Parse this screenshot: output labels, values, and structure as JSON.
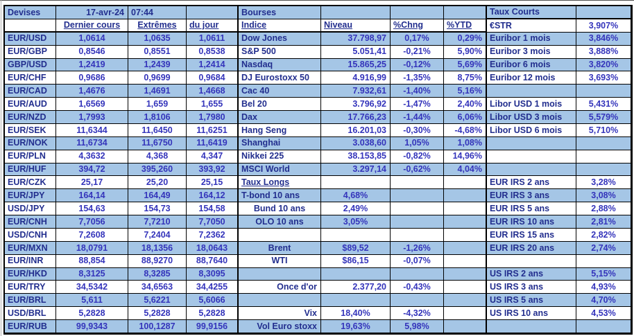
{
  "meta": {
    "date": "17-avr-24",
    "time": "07:44"
  },
  "colors": {
    "row_blue": "#a5c6e6",
    "row_white": "#ffffff",
    "label_text": "#222e8e",
    "value_text": "#3434bb",
    "border": "#000000"
  },
  "devises": {
    "title": "Devises",
    "headers": [
      "Dernier cours",
      "Extrêmes",
      "du jour"
    ],
    "rows": [
      {
        "pair": "EUR/USD",
        "dernier": "1,0614",
        "extremes": "1,0635",
        "du_jour": "1,0611"
      },
      {
        "pair": "EUR/GBP",
        "dernier": "0,8546",
        "extremes": "0,8551",
        "du_jour": "0,8538"
      },
      {
        "pair": "GBP/USD",
        "dernier": "1,2419",
        "extremes": "1,2439",
        "du_jour": "1,2414"
      },
      {
        "pair": "EUR/CHF",
        "dernier": "0,9686",
        "extremes": "0,9699",
        "du_jour": "0,9684"
      },
      {
        "pair": "EUR/CAD",
        "dernier": "1,4676",
        "extremes": "1,4691",
        "du_jour": "1,4668"
      },
      {
        "pair": "EUR/AUD",
        "dernier": "1,6569",
        "extremes": "1,659",
        "du_jour": "1,655"
      },
      {
        "pair": "EUR/NZD",
        "dernier": "1,7993",
        "extremes": "1,8106",
        "du_jour": "1,7980"
      },
      {
        "pair": "EUR/SEK",
        "dernier": "11,6344",
        "extremes": "11,6450",
        "du_jour": "11,6251"
      },
      {
        "pair": "EUR/NOK",
        "dernier": "11,6734",
        "extremes": "11,6750",
        "du_jour": "11,6419"
      },
      {
        "pair": "EUR/PLN",
        "dernier": "4,3632",
        "extremes": "4,368",
        "du_jour": "4,347"
      },
      {
        "pair": "EUR/HUF",
        "dernier": "394,72",
        "extremes": "395,260",
        "du_jour": "393,92"
      },
      {
        "pair": "EUR/CZK",
        "dernier": "25,17",
        "extremes": "25,20",
        "du_jour": "25,15"
      },
      {
        "pair": "EUR/JPY",
        "dernier": "164,14",
        "extremes": "164,49",
        "du_jour": "164,12"
      },
      {
        "pair": "USD/JPY",
        "dernier": "154,63",
        "extremes": "154,73",
        "du_jour": "154,58"
      },
      {
        "pair": "EUR/CNH",
        "dernier": "7,7056",
        "extremes": "7,7210",
        "du_jour": "7,7050"
      },
      {
        "pair": "USD/CNH",
        "dernier": "7,2608",
        "extremes": "7,2404",
        "du_jour": "7,2362"
      },
      {
        "pair": "EUR/MXN",
        "dernier": "18,0791",
        "extremes": "18,1356",
        "du_jour": "18,0643"
      },
      {
        "pair": "EUR/INR",
        "dernier": "88,854",
        "extremes": "88,9270",
        "du_jour": "88,7640"
      },
      {
        "pair": "EUR/HKD",
        "dernier": "8,3125",
        "extremes": "8,3285",
        "du_jour": "8,3095"
      },
      {
        "pair": "EUR/TRY",
        "dernier": "34,5342",
        "extremes": "34,6563",
        "du_jour": "34,4255"
      },
      {
        "pair": "EUR/BRL",
        "dernier": "5,611",
        "extremes": "5,6221",
        "du_jour": "5,6066"
      },
      {
        "pair": "USD/BRL",
        "dernier": "5,2828",
        "extremes": "5,2828",
        "du_jour": "5,2828"
      },
      {
        "pair": "EUR/RUB",
        "dernier": "99,9343",
        "extremes": "100,1287",
        "du_jour": "99,9156"
      }
    ]
  },
  "bourses": {
    "title": "Bourses",
    "headers": [
      "Indice",
      "Niveau",
      "%Chng",
      "%YTD"
    ],
    "rows": [
      {
        "indice": "Dow Jones",
        "niveau": "37.798,97",
        "chng": "0,17%",
        "ytd": "0,29%"
      },
      {
        "indice": "S&P 500",
        "niveau": "5.051,41",
        "chng": "-0,21%",
        "ytd": "5,90%"
      },
      {
        "indice": "Nasdaq",
        "niveau": "15.865,25",
        "chng": "-0,12%",
        "ytd": "5,69%"
      },
      {
        "indice": "DJ Eurostoxx 50",
        "niveau": "4.916,99",
        "chng": "-1,35%",
        "ytd": "8,75%"
      },
      {
        "indice": "Cac 40",
        "niveau": "7.932,61",
        "chng": "-1,40%",
        "ytd": "5,16%"
      },
      {
        "indice": "Bel 20",
        "niveau": "3.796,92",
        "chng": "-1,47%",
        "ytd": "2,40%"
      },
      {
        "indice": "Dax",
        "niveau": "17.766,23",
        "chng": "-1,44%",
        "ytd": "6,06%"
      },
      {
        "indice": "Hang Seng",
        "niveau": "16.201,03",
        "chng": "-0,30%",
        "ytd": "-4,68%"
      },
      {
        "indice": "Shanghai",
        "niveau": "3.038,60",
        "chng": "1,05%",
        "ytd": "1,08%"
      },
      {
        "indice": "Nikkei 225",
        "niveau": "38.153,85",
        "chng": "-0,82%",
        "ytd": "14,96%"
      },
      {
        "indice": "MSCI World",
        "niveau": "3.297,14",
        "chng": "-0,62%",
        "ytd": "4,04%"
      }
    ],
    "taux_longs": {
      "title": "Taux Longs",
      "rows": [
        {
          "label": "T-bond 10 ans",
          "value": "4,68%"
        },
        {
          "label": "Bund 10 ans",
          "value": "2,49%"
        },
        {
          "label": "OLO 10 ans",
          "value": "3,05%"
        }
      ]
    },
    "commodities": [
      {
        "label": "Brent",
        "value": "$89,52",
        "chng": "-1,26%"
      },
      {
        "label": "WTI",
        "value": "$86,15",
        "chng": "-0,07%"
      },
      {
        "label": "Once d'or",
        "value": "2.377,20",
        "chng": "-0,43%"
      }
    ],
    "volatility": [
      {
        "label": "Vix",
        "value": "18,40%",
        "chng": "-4,32%"
      },
      {
        "label": "Vol Euro stoxx",
        "value": "19,63%",
        "chng": "5,98%"
      }
    ]
  },
  "taux_courts": {
    "title": "Taux Courts",
    "rows": [
      {
        "label": "€STR",
        "value": "3,907%"
      },
      {
        "label": "Euribor 1 mois",
        "value": "3,846%"
      },
      {
        "label": "Euribor 3 mois",
        "value": "3,888%"
      },
      {
        "label": "Euribor 6 mois",
        "value": "3,820%"
      },
      {
        "label": "Euribor 12 mois",
        "value": "3,693%"
      }
    ],
    "libor_rows": [
      {
        "label": "Libor USD 1 mois",
        "value": "5,431%"
      },
      {
        "label": "Libor USD 3 mois",
        "value": "5,579%"
      },
      {
        "label": "Libor USD 6 mois",
        "value": "5,710%"
      }
    ]
  },
  "irs": {
    "eur_rows": [
      {
        "label": "EUR IRS 2 ans",
        "value": "3,28%"
      },
      {
        "label": "EUR IRS 3 ans",
        "value": "3,08%"
      },
      {
        "label": "EUR IRS 5 ans",
        "value": "2,88%"
      },
      {
        "label": "EUR IRS 10 ans",
        "value": "2,81%"
      },
      {
        "label": "EUR IRS 15 ans",
        "value": "2,82%"
      },
      {
        "label": "EUR IRS 20 ans",
        "value": "2,74%"
      }
    ],
    "us_rows": [
      {
        "label": "US IRS 2 ans",
        "value": "5,15%"
      },
      {
        "label": "US IRS 3 ans",
        "value": "4,93%"
      },
      {
        "label": "US IRS 5 ans",
        "value": "4,70%"
      },
      {
        "label": "US IRS 10 ans",
        "value": "4,53%"
      }
    ]
  }
}
